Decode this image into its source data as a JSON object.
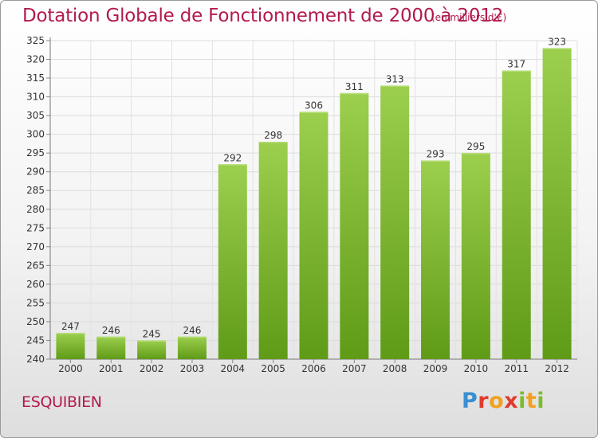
{
  "title": "Dotation Globale de Fonctionnement de 2000 à 2012",
  "subtitle": "(en milliers d'€)",
  "place": "ESQUIBIEN",
  "logo": {
    "text": "Proxiti",
    "colors": [
      "#3a8fd1",
      "#e03c2e",
      "#f2a01e",
      "#7dbb2e"
    ]
  },
  "colors": {
    "bar_top": "#9ccf4e",
    "bar_bottom": "#5f9b17",
    "title": "#b2194f"
  },
  "chart_data": {
    "type": "bar",
    "title": "Dotation Globale de Fonctionnement de 2000 à 2012",
    "subtitle": "(en milliers d'€)",
    "xlabel": "",
    "ylabel": "",
    "categories": [
      "2000",
      "2001",
      "2002",
      "2003",
      "2004",
      "2005",
      "2006",
      "2007",
      "2008",
      "2009",
      "2010",
      "2011",
      "2012"
    ],
    "values": [
      247,
      246,
      245,
      246,
      292,
      298,
      306,
      311,
      313,
      293,
      295,
      317,
      323
    ],
    "ylim": [
      240,
      325
    ],
    "ytick_step": 5,
    "grid": true,
    "legend": "none"
  }
}
